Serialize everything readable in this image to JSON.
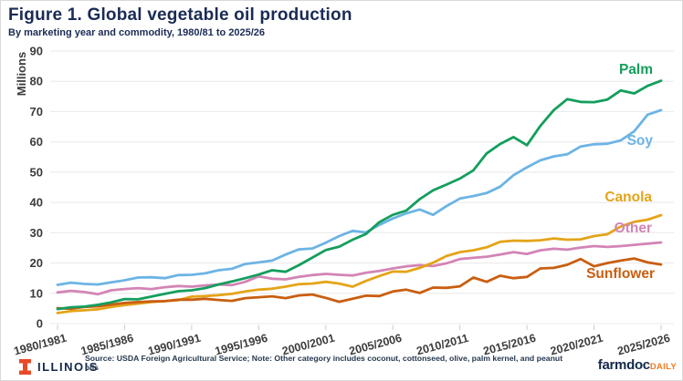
{
  "header": {
    "title": "Figure 1. Global vegetable oil production",
    "subtitle": "By marketing year and commodity, 1980/81 to 2025/26"
  },
  "chart_data": {
    "type": "line",
    "title": "Figure 1. Global vegetable oil production",
    "subtitle": "By marketing year and commodity, 1980/81 to 2025/26",
    "ylabel": "Millions",
    "ylim": [
      0,
      90
    ],
    "y_ticks": [
      0,
      10,
      20,
      30,
      40,
      50,
      60,
      70,
      80,
      90
    ],
    "grid": "horizontal",
    "legend_position": "end-of-line labels",
    "x_start": "1980/1981",
    "x_end": "2025/2026",
    "points_per_series": 46,
    "x_tick_labels": [
      "1980/1981",
      "1985/1986",
      "1990/1991",
      "1995/1996",
      "2000/2001",
      "2005/2006",
      "2010/2011",
      "2015/2016",
      "2020/2021",
      "2025/2026"
    ],
    "x_tick_indices": [
      0,
      5,
      10,
      15,
      20,
      25,
      30,
      35,
      40,
      45
    ],
    "series": [
      {
        "name": "Other",
        "color": "#d384b6",
        "values": [
          10.3,
          10.8,
          10.4,
          9.7,
          11.0,
          11.4,
          11.7,
          11.4,
          12.0,
          12.4,
          12.2,
          12.6,
          12.9,
          12.7,
          13.8,
          15.6,
          14.8,
          14.6,
          15.4,
          16.0,
          16.4,
          16.1,
          15.9,
          16.8,
          17.4,
          18.2,
          18.9,
          19.3,
          19.0,
          19.9,
          21.3,
          21.7,
          22.1,
          22.8,
          23.6,
          23.0,
          24.2,
          24.7,
          24.4,
          25.1,
          25.6,
          25.3,
          25.6,
          26.0,
          26.4,
          26.8
        ]
      },
      {
        "name": "Canola",
        "color": "#e4a418",
        "values": [
          3.5,
          4.1,
          4.4,
          4.7,
          5.5,
          6.1,
          6.6,
          7.1,
          7.4,
          7.7,
          8.9,
          9.1,
          9.4,
          9.8,
          10.6,
          11.2,
          11.5,
          12.2,
          13.0,
          13.2,
          13.8,
          13.2,
          12.2,
          14.1,
          15.7,
          17.2,
          17.1,
          18.4,
          20.1,
          22.3,
          23.6,
          24.2,
          25.2,
          27.0,
          27.4,
          27.3,
          27.5,
          28.1,
          27.7,
          27.8,
          28.9,
          29.5,
          32.1,
          33.6,
          34.3,
          35.8
        ]
      },
      {
        "name": "Sunflower",
        "color": "#c95e10",
        "values": [
          5.1,
          4.9,
          5.5,
          5.7,
          6.3,
          6.8,
          7.1,
          7.3,
          7.4,
          7.9,
          7.9,
          8.2,
          7.8,
          7.5,
          8.4,
          8.7,
          9.0,
          8.4,
          9.3,
          9.6,
          8.5,
          7.2,
          8.2,
          9.2,
          9.1,
          10.6,
          11.2,
          10.1,
          11.9,
          11.8,
          12.3,
          15.2,
          13.8,
          15.8,
          15.0,
          15.4,
          18.2,
          18.4,
          19.4,
          21.3,
          18.9,
          20.0,
          20.8,
          21.5,
          20.2,
          19.5
        ]
      },
      {
        "name": "Soy",
        "color": "#6cb4e4",
        "values": [
          12.8,
          13.5,
          13.1,
          12.9,
          13.6,
          14.3,
          15.2,
          15.3,
          15.0,
          16.0,
          16.1,
          16.6,
          17.6,
          18.1,
          19.7,
          20.2,
          20.8,
          22.8,
          24.5,
          24.8,
          26.7,
          28.9,
          30.6,
          30.1,
          32.6,
          34.7,
          36.4,
          37.7,
          35.9,
          38.8,
          41.3,
          42.1,
          43.1,
          45.2,
          49.0,
          51.6,
          53.9,
          55.2,
          55.9,
          58.5,
          59.2,
          59.4,
          60.5,
          63.5,
          69.0,
          70.5
        ]
      },
      {
        "name": "Palm",
        "color": "#149e5d",
        "values": [
          4.8,
          5.4,
          5.6,
          6.2,
          7.0,
          8.1,
          8.0,
          8.9,
          9.8,
          10.7,
          11.0,
          11.7,
          12.9,
          13.9,
          15.0,
          16.2,
          17.6,
          17.1,
          19.3,
          21.8,
          24.3,
          25.4,
          27.7,
          29.6,
          33.5,
          35.9,
          37.3,
          41.1,
          44.0,
          45.9,
          47.9,
          50.6,
          56.2,
          59.3,
          61.6,
          58.9,
          65.3,
          70.5,
          74.1,
          73.2,
          73.1,
          74.0,
          77.0,
          76.0,
          78.5,
          80.2
        ]
      }
    ]
  },
  "footer": {
    "illinois_label": "ILLINOIS",
    "source_text": "Source: USDA Foreign Agricultural Service; Note: Other category includes coconut, cottonseed, olive, palm kernel, and peanut oils",
    "farmdoc_label": "farmdoc",
    "daily_label": "DAILY"
  },
  "colors": {
    "title_navy": "#1a2b55",
    "illinois_navy": "#13294b",
    "illinois_orange": "#e84a27",
    "farmdoc_orange": "#f47b20",
    "gridline": "#e8e8e8",
    "tick_text": "#3c3c3c"
  }
}
